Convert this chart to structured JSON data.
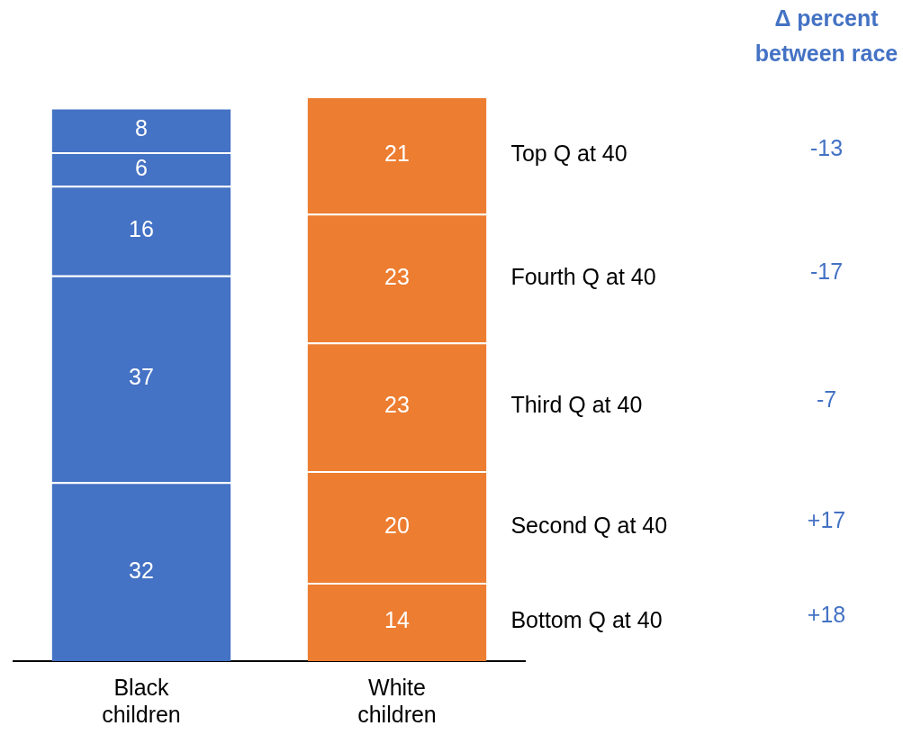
{
  "chart_data": {
    "type": "bar",
    "stacked": true,
    "categories": [
      "Black children",
      "White children"
    ],
    "series": [
      {
        "name": "Bottom Q at 40",
        "colors": [
          "#4472c4",
          "#ed7d31"
        ],
        "values": [
          32,
          14
        ]
      },
      {
        "name": "Second Q at 40",
        "colors": [
          "#4472c4",
          "#ed7d31"
        ],
        "values": [
          37,
          20
        ]
      },
      {
        "name": "Third Q at 40",
        "colors": [
          "#4472c4",
          "#ed7d31"
        ],
        "values": [
          16,
          23
        ]
      },
      {
        "name": "Fourth Q at 40",
        "colors": [
          "#4472c4",
          "#ed7d31"
        ],
        "values": [
          6,
          23
        ]
      },
      {
        "name": "Top Q at 40",
        "colors": [
          "#4472c4",
          "#ed7d31"
        ],
        "values": [
          8,
          21
        ]
      }
    ],
    "data_labels": true,
    "legend": false,
    "grid": false,
    "tick_labels": "x",
    "annotations": [
      "Δ percent between race",
      "+18",
      "+17",
      "-7",
      "-17",
      "-13"
    ]
  }
}
